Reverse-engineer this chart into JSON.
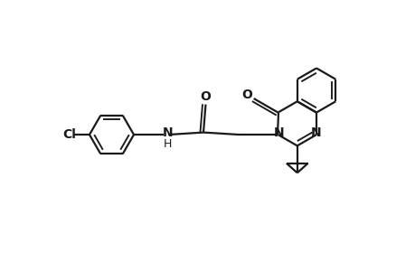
{
  "background_color": "#ffffff",
  "line_color": "#1a1a1a",
  "line_width": 1.6,
  "figsize": [
    4.6,
    3.0
  ],
  "dpi": 100,
  "xlim": [
    0,
    9.2
  ],
  "ylim": [
    0,
    6.0
  ]
}
